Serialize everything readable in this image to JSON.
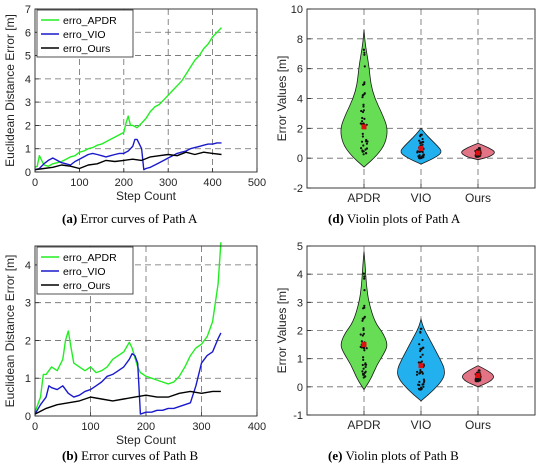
{
  "chart_data": [
    {
      "id": "a",
      "type": "line",
      "xlabel": "Step Count",
      "ylabel": "Euclidean Distance Error [m]",
      "xlim": [
        0,
        500
      ],
      "ylim": [
        0,
        7
      ],
      "xticks": [
        0,
        100,
        200,
        300,
        400,
        500
      ],
      "yticks": [
        0,
        1,
        2,
        3,
        4,
        5,
        6,
        7
      ],
      "grid": true,
      "legend_position": "top-left",
      "series": [
        {
          "name": "erro_APDR",
          "color": "#22ee22",
          "x": [
            0,
            5,
            10,
            20,
            30,
            40,
            50,
            60,
            70,
            80,
            90,
            100,
            110,
            120,
            130,
            140,
            150,
            160,
            170,
            180,
            190,
            200,
            205,
            210,
            215,
            220,
            230,
            240,
            250,
            260,
            270,
            280,
            290,
            300,
            310,
            320,
            330,
            340,
            350,
            360,
            370,
            380,
            390,
            400,
            410,
            420
          ],
          "y": [
            0.2,
            0.25,
            0.7,
            0.3,
            0.25,
            0.35,
            0.4,
            0.45,
            0.55,
            0.65,
            0.7,
            0.85,
            0.9,
            1.0,
            1.05,
            1.15,
            1.2,
            1.3,
            1.4,
            1.5,
            1.6,
            1.7,
            2.1,
            2.4,
            2.0,
            2.0,
            1.9,
            2.1,
            2.3,
            2.6,
            2.8,
            2.9,
            3.1,
            3.3,
            3.5,
            3.7,
            3.9,
            4.2,
            4.5,
            4.8,
            5.0,
            5.3,
            5.5,
            5.8,
            6.0,
            6.2
          ]
        },
        {
          "name": "erro_VIO",
          "color": "#1a1acc",
          "x": [
            0,
            10,
            20,
            30,
            40,
            50,
            60,
            70,
            80,
            90,
            100,
            110,
            120,
            130,
            140,
            150,
            160,
            170,
            180,
            190,
            200,
            210,
            220,
            225,
            230,
            240,
            245,
            250,
            260,
            270,
            280,
            290,
            300,
            310,
            320,
            330,
            340,
            350,
            360,
            370,
            380,
            390,
            400,
            410,
            420
          ],
          "y": [
            0.1,
            0.15,
            0.35,
            0.5,
            0.6,
            0.5,
            0.4,
            0.35,
            0.3,
            0.45,
            0.55,
            0.65,
            0.75,
            0.8,
            0.75,
            0.7,
            0.65,
            0.7,
            0.75,
            0.8,
            0.8,
            0.9,
            1.1,
            1.4,
            1.4,
            1.0,
            0.1,
            0.15,
            0.2,
            0.3,
            0.4,
            0.5,
            0.6,
            0.7,
            0.8,
            0.85,
            0.9,
            1.0,
            1.05,
            1.1,
            1.15,
            1.2,
            1.2,
            1.25,
            1.25
          ]
        },
        {
          "name": "erro_Ours",
          "color": "#000000",
          "x": [
            0,
            20,
            40,
            60,
            80,
            100,
            120,
            140,
            160,
            180,
            200,
            220,
            240,
            260,
            280,
            300,
            320,
            340,
            360,
            380,
            400,
            420
          ],
          "y": [
            0.1,
            0.15,
            0.2,
            0.3,
            0.25,
            0.15,
            0.3,
            0.35,
            0.5,
            0.45,
            0.5,
            0.55,
            0.5,
            0.65,
            0.7,
            0.75,
            0.7,
            0.85,
            0.75,
            0.85,
            0.8,
            0.75
          ]
        }
      ]
    },
    {
      "id": "b",
      "type": "line",
      "xlabel": "Step Count",
      "ylabel": "Euclidean Distance Error [m]",
      "xlim": [
        0,
        400
      ],
      "ylim": [
        0,
        4.5
      ],
      "xticks": [
        0,
        100,
        200,
        300,
        400
      ],
      "yticks": [
        0,
        1,
        2,
        3,
        4
      ],
      "grid": true,
      "legend_position": "top-left",
      "series": [
        {
          "name": "erro_APDR",
          "color": "#22ee22",
          "x": [
            0,
            10,
            15,
            20,
            30,
            40,
            50,
            55,
            60,
            65,
            70,
            80,
            90,
            100,
            110,
            120,
            130,
            140,
            150,
            160,
            170,
            175,
            180,
            185,
            190,
            195,
            200,
            210,
            220,
            230,
            240,
            250,
            260,
            270,
            280,
            290,
            300,
            310,
            320,
            330,
            335
          ],
          "y": [
            0.1,
            0.5,
            1.1,
            1.1,
            1.3,
            1.2,
            1.5,
            2.0,
            2.25,
            1.8,
            1.4,
            1.3,
            1.2,
            1.3,
            1.15,
            1.2,
            1.3,
            1.5,
            1.6,
            1.7,
            1.95,
            1.8,
            1.55,
            1.3,
            1.15,
            1.1,
            1.05,
            1.0,
            0.95,
            0.9,
            0.85,
            0.9,
            1.05,
            1.3,
            1.6,
            1.8,
            1.9,
            2.1,
            2.5,
            3.5,
            4.6
          ]
        },
        {
          "name": "erro_VIO",
          "color": "#1a1acc",
          "x": [
            0,
            10,
            20,
            25,
            30,
            40,
            50,
            60,
            70,
            80,
            90,
            100,
            110,
            120,
            130,
            140,
            150,
            160,
            170,
            175,
            180,
            185,
            190,
            200,
            210,
            220,
            230,
            240,
            250,
            260,
            270,
            280,
            290,
            300,
            310,
            320,
            330,
            335
          ],
          "y": [
            0.05,
            0.3,
            0.5,
            0.8,
            0.75,
            0.7,
            0.8,
            0.6,
            0.5,
            0.55,
            0.65,
            0.7,
            0.8,
            0.9,
            1.05,
            1.1,
            1.2,
            1.3,
            1.5,
            1.65,
            1.6,
            1.4,
            0.05,
            0.1,
            0.1,
            0.15,
            0.15,
            0.2,
            0.2,
            0.25,
            0.3,
            0.35,
            0.8,
            1.4,
            1.6,
            1.7,
            2.05,
            2.2
          ]
        },
        {
          "name": "erro_Ours",
          "color": "#000000",
          "x": [
            0,
            20,
            40,
            60,
            80,
            100,
            120,
            140,
            160,
            180,
            200,
            220,
            240,
            260,
            280,
            300,
            320,
            335
          ],
          "y": [
            0.05,
            0.2,
            0.3,
            0.35,
            0.4,
            0.5,
            0.45,
            0.4,
            0.45,
            0.5,
            0.55,
            0.5,
            0.5,
            0.6,
            0.65,
            0.6,
            0.65,
            0.65
          ]
        }
      ]
    },
    {
      "id": "d",
      "type": "violin",
      "ylabel": "Error Values [m]",
      "ylim": [
        -2,
        10
      ],
      "yticks": [
        -2,
        0,
        2,
        4,
        6,
        8,
        10
      ],
      "grid": true,
      "categories": [
        "APDR",
        "VIO",
        "Ours"
      ],
      "colors": [
        "#66dd55",
        "#22b0ee",
        "#e27486"
      ],
      "medians": [
        2.1,
        0.65,
        0.35
      ],
      "profiles": [
        {
          "y": [
            -0.6,
            0.2,
            1.0,
            2.0,
            3.0,
            4.0,
            5.0,
            6.0,
            7.0,
            7.8,
            8.6
          ],
          "w": [
            0.0,
            0.55,
            0.9,
            1.0,
            0.75,
            0.45,
            0.28,
            0.22,
            0.12,
            0.04,
            0.0
          ]
        },
        {
          "y": [
            -0.4,
            0.0,
            0.4,
            0.8,
            1.2,
            1.6,
            2.0
          ],
          "w": [
            0.0,
            0.55,
            0.9,
            0.7,
            0.45,
            0.2,
            0.0
          ]
        },
        {
          "y": [
            -0.1,
            0.1,
            0.4,
            0.7,
            1.0
          ],
          "w": [
            0.0,
            0.5,
            0.75,
            0.45,
            0.0
          ]
        }
      ]
    },
    {
      "id": "e",
      "type": "violin",
      "ylabel": "Error Values [m]",
      "ylim": [
        -1,
        5
      ],
      "yticks": [
        -1,
        0,
        1,
        2,
        3,
        4,
        5
      ],
      "grid": true,
      "categories": [
        "APDR",
        "VIO",
        "Ours"
      ],
      "colors": [
        "#66dd55",
        "#22b0ee",
        "#e27486"
      ],
      "medians": [
        1.5,
        0.75,
        0.4
      ],
      "profiles": [
        {
          "y": [
            -0.1,
            0.3,
            0.8,
            1.2,
            1.5,
            1.9,
            2.3,
            3.0,
            3.6,
            4.3,
            4.8
          ],
          "w": [
            0.0,
            0.3,
            0.55,
            0.85,
            1.0,
            0.8,
            0.45,
            0.2,
            0.1,
            0.05,
            0.0
          ]
        },
        {
          "y": [
            -0.5,
            -0.1,
            0.3,
            0.6,
            0.9,
            1.3,
            1.7,
            2.1,
            2.4
          ],
          "w": [
            0.0,
            0.55,
            0.95,
            1.0,
            0.85,
            0.6,
            0.35,
            0.1,
            0.0
          ]
        },
        {
          "y": [
            0.0,
            0.2,
            0.4,
            0.6,
            0.75
          ],
          "w": [
            0.0,
            0.55,
            0.7,
            0.35,
            0.0
          ]
        }
      ]
    }
  ],
  "captions": {
    "a": {
      "label": "(a)",
      "text": " Error curves of Path A"
    },
    "b": {
      "label": "(b)",
      "text": " Error curves of Path B"
    },
    "d": {
      "label": "(d)",
      "text": " Violin plots of Path A"
    },
    "e": {
      "label": "(e)",
      "text": " Violin plots of Path B"
    }
  }
}
